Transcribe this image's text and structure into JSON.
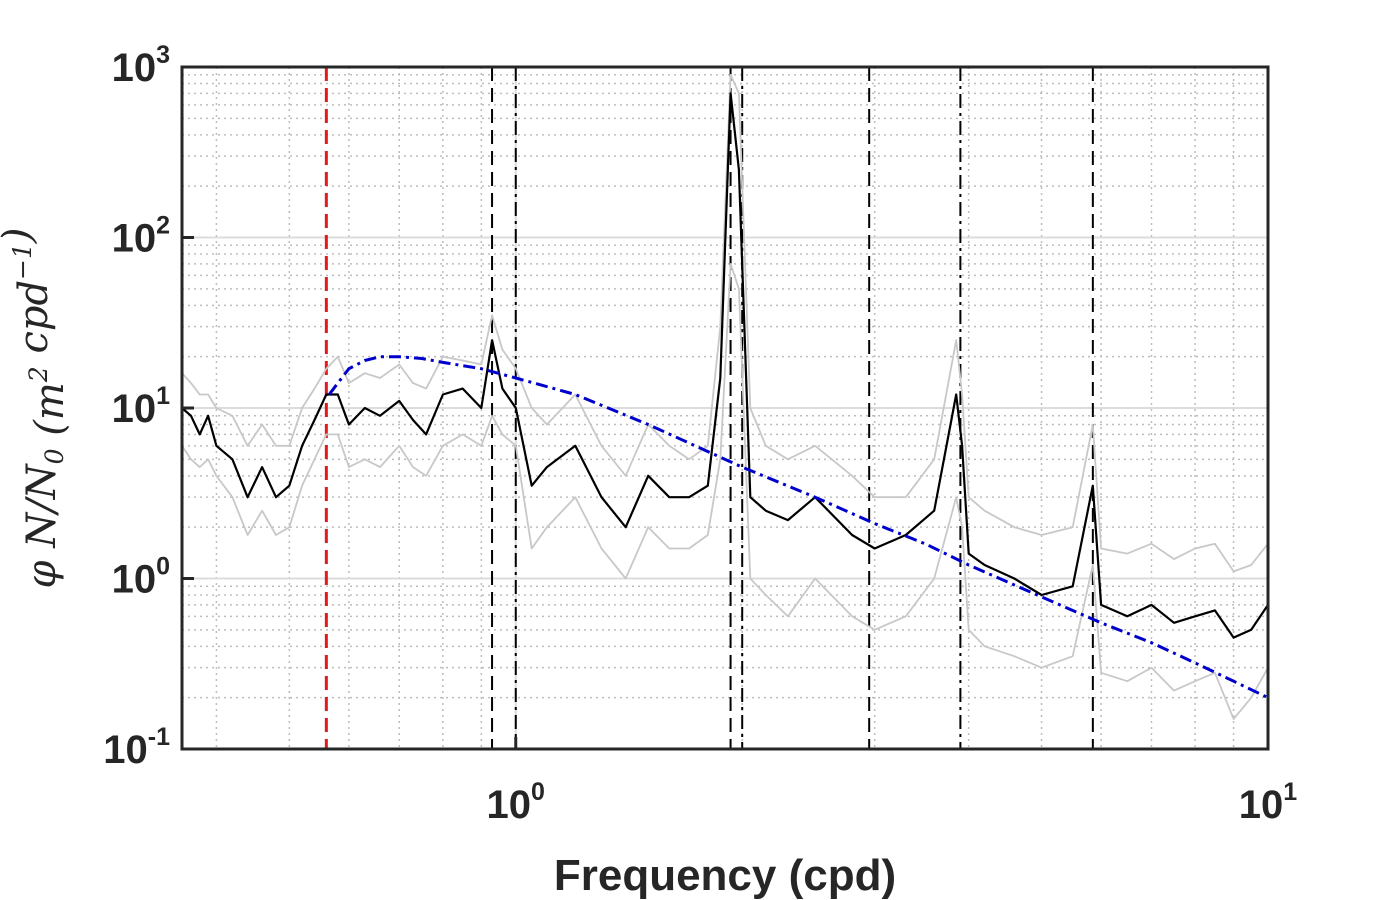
{
  "chart_data": {
    "type": "line",
    "xlabel": "Frequency (cpd)",
    "ylabel": {
      "parts": [
        {
          "t": "φ N/N",
          "s": ""
        },
        {
          "t": "0",
          "s": "sub"
        },
        {
          "t": " (m",
          "s": ""
        },
        {
          "t": "2",
          "s": "sup"
        },
        {
          "t": " cpd",
          "s": ""
        },
        {
          "t": "−1",
          "s": "sup"
        },
        {
          "t": ")",
          "s": ""
        }
      ]
    },
    "xscale": "log",
    "yscale": "log",
    "xlim": [
      0.36,
      10
    ],
    "ylim": [
      0.1,
      1000
    ],
    "grid": true,
    "xticks": [
      {
        "value": 1,
        "label_base": "10",
        "label_exp": "0"
      },
      {
        "value": 10,
        "label_base": "10",
        "label_exp": "1"
      }
    ],
    "yticks": [
      {
        "value": 0.1,
        "label_base": "10",
        "label_exp": "-1"
      },
      {
        "value": 1,
        "label_base": "10",
        "label_exp": "0"
      },
      {
        "value": 10,
        "label_base": "10",
        "label_exp": "1"
      },
      {
        "value": 100,
        "label_base": "10",
        "label_exp": "2"
      },
      {
        "value": 1000,
        "label_base": "10",
        "label_exp": "3"
      }
    ],
    "vlines": [
      {
        "x": 0.56,
        "color": "#e31a1c",
        "style": "dash"
      },
      {
        "x": 0.93,
        "color": "#000000",
        "style": "dash"
      },
      {
        "x": 1.0,
        "color": "#000000",
        "style": "dashdot"
      },
      {
        "x": 1.93,
        "color": "#000000",
        "style": "dash"
      },
      {
        "x": 2.0,
        "color": "#000000",
        "style": "dashdot"
      },
      {
        "x": 2.95,
        "color": "#000000",
        "style": "dash"
      },
      {
        "x": 3.9,
        "color": "#000000",
        "style": "dashdot"
      },
      {
        "x": 5.85,
        "color": "#000000",
        "style": "dash"
      }
    ],
    "series": [
      {
        "role": "upper-bound",
        "color": "#c8c8c8",
        "x": [
          0.36,
          0.37,
          0.38,
          0.39,
          0.4,
          0.42,
          0.44,
          0.46,
          0.48,
          0.5,
          0.52,
          0.54,
          0.56,
          0.58,
          0.6,
          0.63,
          0.66,
          0.7,
          0.73,
          0.76,
          0.8,
          0.85,
          0.9,
          0.93,
          0.96,
          1.0,
          1.05,
          1.1,
          1.2,
          1.3,
          1.4,
          1.5,
          1.6,
          1.7,
          1.8,
          1.87,
          1.93,
          1.98,
          2.05,
          2.15,
          2.3,
          2.5,
          2.8,
          3.0,
          3.3,
          3.6,
          3.85,
          3.92,
          4.0,
          4.2,
          4.6,
          5.0,
          5.5,
          5.85,
          6.0,
          6.5,
          7.0,
          7.5,
          8.0,
          8.5,
          9.0,
          9.5,
          10.0
        ],
        "values": [
          16,
          14,
          12,
          12,
          10,
          9,
          6,
          8,
          6,
          6,
          10,
          13,
          17,
          20,
          14,
          16,
          15,
          18,
          14,
          13,
          20,
          19,
          18,
          35,
          22,
          17,
          10,
          8,
          12,
          6,
          4,
          8,
          6,
          5,
          6,
          30,
          900,
          700,
          10,
          6,
          5,
          6,
          4,
          3,
          3,
          5,
          25,
          12,
          3,
          2.5,
          2,
          1.8,
          2,
          8,
          1.5,
          1.4,
          1.6,
          1.3,
          1.5,
          1.6,
          1.1,
          1.2,
          1.6
        ]
      },
      {
        "role": "lower-bound",
        "color": "#c8c8c8",
        "x": [
          0.36,
          0.37,
          0.38,
          0.39,
          0.4,
          0.42,
          0.44,
          0.46,
          0.48,
          0.5,
          0.52,
          0.54,
          0.56,
          0.58,
          0.6,
          0.63,
          0.66,
          0.7,
          0.73,
          0.76,
          0.8,
          0.85,
          0.9,
          0.93,
          0.96,
          1.0,
          1.05,
          1.1,
          1.2,
          1.3,
          1.4,
          1.5,
          1.6,
          1.7,
          1.8,
          1.87,
          1.93,
          1.98,
          2.05,
          2.15,
          2.3,
          2.5,
          2.8,
          3.0,
          3.3,
          3.6,
          3.85,
          3.92,
          4.0,
          4.2,
          4.6,
          5.0,
          5.5,
          5.85,
          6.0,
          6.5,
          7.0,
          7.5,
          8.0,
          8.5,
          9.0,
          9.5,
          10.0
        ],
        "values": [
          6,
          5,
          4.5,
          5,
          4,
          3,
          1.8,
          2.5,
          1.8,
          2,
          3.5,
          5,
          7,
          7,
          4.5,
          5,
          4.5,
          6,
          4.5,
          4,
          6,
          7,
          6,
          9,
          7,
          6,
          1.5,
          2,
          3,
          1.5,
          1.0,
          2,
          1.5,
          1.5,
          1.8,
          5,
          70,
          50,
          1.0,
          0.8,
          0.6,
          1.0,
          0.6,
          0.5,
          0.6,
          1.0,
          3,
          2,
          0.5,
          0.4,
          0.35,
          0.3,
          0.35,
          1.2,
          0.28,
          0.25,
          0.3,
          0.22,
          0.25,
          0.28,
          0.15,
          0.2,
          0.3
        ]
      },
      {
        "role": "spectrum",
        "color": "#000000",
        "x": [
          0.36,
          0.37,
          0.38,
          0.39,
          0.4,
          0.42,
          0.44,
          0.46,
          0.48,
          0.5,
          0.52,
          0.54,
          0.56,
          0.58,
          0.6,
          0.63,
          0.66,
          0.7,
          0.73,
          0.76,
          0.8,
          0.85,
          0.9,
          0.93,
          0.96,
          1.0,
          1.05,
          1.1,
          1.2,
          1.3,
          1.4,
          1.5,
          1.6,
          1.7,
          1.8,
          1.87,
          1.93,
          1.98,
          2.05,
          2.15,
          2.3,
          2.5,
          2.8,
          3.0,
          3.3,
          3.6,
          3.85,
          3.92,
          4.0,
          4.2,
          4.6,
          5.0,
          5.5,
          5.85,
          6.0,
          6.5,
          7.0,
          7.5,
          8.0,
          8.5,
          9.0,
          9.5,
          10.0
        ],
        "values": [
          10,
          9,
          7,
          9,
          6,
          5,
          3,
          4.5,
          3,
          3.5,
          6,
          8.5,
          12,
          12,
          8,
          10,
          9,
          11,
          8.5,
          7,
          12,
          13,
          10,
          25,
          13,
          10,
          3.5,
          4.5,
          6,
          3,
          2,
          4,
          3,
          3,
          3.5,
          15,
          700,
          250,
          3,
          2.5,
          2.2,
          3,
          1.8,
          1.5,
          1.8,
          2.5,
          12,
          6,
          1.4,
          1.2,
          1.0,
          0.8,
          0.9,
          3.5,
          0.7,
          0.6,
          0.7,
          0.55,
          0.6,
          0.65,
          0.45,
          0.5,
          0.7
        ]
      },
      {
        "role": "model-fit",
        "color": "#0000cc",
        "style": "dashdot",
        "x": [
          0.565,
          0.58,
          0.6,
          0.63,
          0.66,
          0.7,
          0.75,
          0.8,
          0.9,
          1.0,
          1.2,
          1.5,
          2.0,
          2.5,
          3.0,
          3.5,
          4.0,
          5.0,
          6.0,
          7.0,
          8.0,
          9.0,
          10.0
        ],
        "values": [
          12,
          14,
          17,
          19,
          20,
          20,
          19.5,
          18.5,
          17,
          15,
          12,
          8,
          4.5,
          3,
          2.1,
          1.6,
          1.2,
          0.78,
          0.55,
          0.42,
          0.32,
          0.25,
          0.2
        ]
      }
    ]
  }
}
